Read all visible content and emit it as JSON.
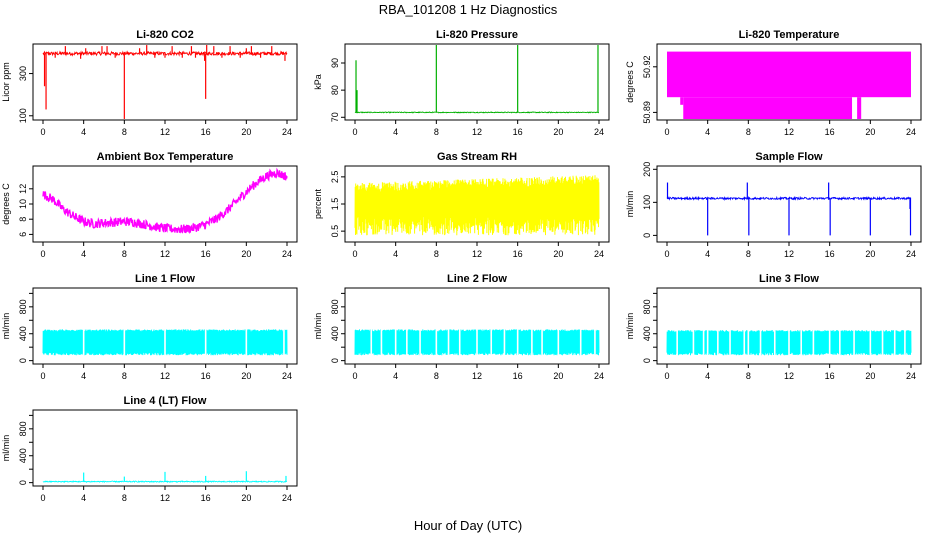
{
  "title": "RBA_101208  1 Hz Diagnostics",
  "x_axis_title": "Hour of Day (UTC)",
  "chart_data": [
    {
      "id": "co2",
      "type": "line",
      "title": "Li-820 CO2",
      "ylabel": "Licor ppm",
      "color": "#ff0000",
      "xlim": [
        0,
        24
      ],
      "xticks": [
        0,
        4,
        8,
        12,
        16,
        20,
        24
      ],
      "ylim": [
        80,
        440
      ],
      "yticks": [
        100,
        300
      ],
      "series": [
        {
          "pattern": "noisy",
          "base": 395,
          "noise": 8,
          "spikes": [
            [
              0.15,
              240
            ],
            [
              0.3,
              130
            ],
            [
              1.2,
              375
            ],
            [
              2.2,
              430
            ],
            [
              3.7,
              370
            ],
            [
              4.2,
              420
            ],
            [
              5.8,
              430
            ],
            [
              6.3,
              430
            ],
            [
              7.1,
              375
            ],
            [
              8,
              80
            ],
            [
              9.5,
              420
            ],
            [
              10.2,
              435
            ],
            [
              11.0,
              375
            ],
            [
              12.0,
              375
            ],
            [
              12.7,
              430
            ],
            [
              13.7,
              375
            ],
            [
              14.6,
              430
            ],
            [
              15.0,
              375
            ],
            [
              15.9,
              360
            ],
            [
              16,
              180
            ],
            [
              16.1,
              455
            ],
            [
              16.8,
              430
            ],
            [
              17.6,
              375
            ],
            [
              18.4,
              430
            ],
            [
              19.4,
              375
            ],
            [
              20.0,
              420
            ],
            [
              20.5,
              430
            ],
            [
              21.4,
              375
            ],
            [
              22.5,
              430
            ],
            [
              23.8,
              360
            ]
          ]
        }
      ]
    },
    {
      "id": "pressure",
      "type": "line",
      "title": "Li-820 Pressure",
      "ylabel": "kPa",
      "color": "#00b000",
      "xlim": [
        0,
        24
      ],
      "xticks": [
        0,
        4,
        8,
        12,
        16,
        20,
        24
      ],
      "ylim": [
        69,
        97
      ],
      "yticks": [
        70,
        80,
        90
      ],
      "series": [
        {
          "pattern": "noisy",
          "base": 71.8,
          "noise": 0.15,
          "spikes": [
            [
              0.1,
              91
            ],
            [
              0.2,
              80
            ],
            [
              8,
              97
            ],
            [
              16,
              97
            ],
            [
              23.9,
              97
            ]
          ]
        }
      ]
    },
    {
      "id": "li820_temp",
      "type": "area",
      "title": "Li-820 Temperature",
      "ylabel": "degrees C",
      "color": "#ff00ff",
      "xlim": [
        0,
        24
      ],
      "xticks": [
        0,
        4,
        8,
        12,
        16,
        20,
        24
      ],
      "ylim": [
        50.885,
        50.935
      ],
      "yticks": [
        50.89,
        50.92
      ],
      "series": [
        {
          "pattern": "band",
          "low": 50.9,
          "high": 50.93,
          "deep_from": 1.6,
          "deep_to": 18.2,
          "deep_low": 50.885,
          "gap": [
            18.3,
            18.6
          ],
          "deep2_from": 18.7,
          "deep2_to": 19.1,
          "edge_low": [
            [
              0,
              1.3,
              50.91
            ],
            [
              1.3,
              1.6,
              50.895
            ]
          ]
        }
      ]
    },
    {
      "id": "ambient_temp",
      "type": "line",
      "title": "Ambient Box Temperature",
      "ylabel": "degrees C",
      "color": "#ff00ff",
      "xlim": [
        0,
        24
      ],
      "xticks": [
        0,
        4,
        8,
        12,
        16,
        20,
        24
      ],
      "ylim": [
        5,
        15
      ],
      "yticks": [
        6,
        8,
        10,
        12
      ],
      "series": [
        {
          "pattern": "curve",
          "noise": 0.6,
          "points": [
            [
              0,
              11.3
            ],
            [
              1,
              10.6
            ],
            [
              2,
              9.3
            ],
            [
              3,
              8.4
            ],
            [
              4,
              7.7
            ],
            [
              5,
              7.4
            ],
            [
              6,
              7.5
            ],
            [
              7,
              7.6
            ],
            [
              8,
              7.7
            ],
            [
              9,
              7.6
            ],
            [
              10,
              7.3
            ],
            [
              11,
              7.0
            ],
            [
              12,
              6.8
            ],
            [
              13,
              6.7
            ],
            [
              14,
              6.7
            ],
            [
              15,
              6.9
            ],
            [
              16,
              7.3
            ],
            [
              17,
              8.0
            ],
            [
              18,
              9.0
            ],
            [
              19,
              10.3
            ],
            [
              20,
              11.6
            ],
            [
              21,
              12.8
            ],
            [
              22,
              13.7
            ],
            [
              23,
              14.1
            ],
            [
              24,
              13.6
            ]
          ]
        }
      ]
    },
    {
      "id": "rh",
      "type": "area",
      "title": "Gas Stream RH",
      "ylabel": "percent",
      "color": "#ffff00",
      "xlim": [
        0,
        24
      ],
      "xticks": [
        0,
        4,
        8,
        12,
        16,
        20,
        24
      ],
      "ylim": [
        0.1,
        2.9
      ],
      "yticks": [
        0.5,
        1.5,
        2.5
      ],
      "series": [
        {
          "pattern": "noise_band",
          "points_low": [
            [
              0,
              0.7
            ],
            [
              24,
              0.7
            ]
          ],
          "points_high": [
            [
              0,
              2.1
            ],
            [
              24,
              2.4
            ]
          ],
          "jitter": 0.35
        }
      ]
    },
    {
      "id": "sample_flow",
      "type": "line",
      "title": "Sample Flow",
      "ylabel": "ml/min",
      "color": "#0000ff",
      "xlim": [
        0,
        24
      ],
      "xticks": [
        0,
        4,
        8,
        12,
        16,
        20,
        24
      ],
      "ylim": [
        -20,
        210
      ],
      "yticks": [
        0,
        100,
        200
      ],
      "series": [
        {
          "pattern": "noisy",
          "base": 112,
          "noise": 3,
          "spikes": [
            [
              0.05,
              160
            ],
            [
              4,
              0
            ],
            [
              7.9,
              160
            ],
            [
              8.05,
              0
            ],
            [
              12,
              0
            ],
            [
              15.9,
              160
            ],
            [
              16.05,
              0
            ],
            [
              20,
              0
            ],
            [
              23.95,
              0
            ],
            [
              23.9,
              80
            ]
          ]
        }
      ]
    },
    {
      "id": "line1",
      "type": "area",
      "title": "Line 1 Flow",
      "ylabel": "ml/min",
      "color": "#00ffff",
      "xlim": [
        0,
        24
      ],
      "xticks": [
        0,
        4,
        8,
        12,
        16,
        20,
        24
      ],
      "ylim": [
        -50,
        1080
      ],
      "yticks": [
        0,
        200,
        400,
        600,
        800,
        1000
      ],
      "yticklabels": [
        0,
        400,
        800
      ],
      "series": [
        {
          "pattern": "band",
          "low": 100,
          "high": 450,
          "gaps": [
            4,
            8,
            12,
            16,
            20,
            23.7
          ]
        }
      ]
    },
    {
      "id": "line2",
      "type": "area",
      "title": "Line 2 Flow",
      "ylabel": "ml/min",
      "color": "#00ffff",
      "xlim": [
        0,
        24
      ],
      "xticks": [
        0,
        4,
        8,
        12,
        16,
        20,
        24
      ],
      "ylim": [
        -50,
        1080
      ],
      "yticks": [
        0,
        200,
        400,
        600,
        800,
        1000
      ],
      "yticklabels": [
        0,
        400,
        800
      ],
      "series": [
        {
          "pattern": "band",
          "low": 100,
          "high": 450,
          "gaps": [
            1.6,
            2.6,
            4.0,
            5.1,
            6.4,
            8,
            9.2,
            10.3,
            12,
            13.4,
            14.7,
            16,
            17.4,
            18.4,
            20,
            22.2,
            23.6
          ]
        }
      ]
    },
    {
      "id": "line3",
      "type": "area",
      "title": "Line 3 Flow",
      "ylabel": "ml/min",
      "color": "#00ffff",
      "xlim": [
        0,
        24
      ],
      "xticks": [
        0,
        4,
        8,
        12,
        16,
        20,
        24
      ],
      "ylim": [
        -50,
        1080
      ],
      "yticks": [
        0,
        200,
        400,
        600,
        800,
        1000
      ],
      "yticklabels": [
        0,
        400,
        800
      ],
      "series": [
        {
          "pattern": "band",
          "low": 100,
          "high": 440,
          "gaps": [
            1.0,
            2.6,
            3.6,
            4.0,
            5.0,
            6.2,
            7.6,
            8,
            9.2,
            10.6,
            12,
            13.2,
            14.4,
            16,
            17.0,
            18.4,
            20,
            21.2,
            22.4,
            23.4
          ]
        }
      ]
    },
    {
      "id": "line4",
      "type": "line",
      "title": "Line 4 (LT) Flow",
      "ylabel": "ml/min",
      "color": "#00ffff",
      "xlim": [
        0,
        24
      ],
      "xticks": [
        0,
        4,
        8,
        12,
        16,
        20,
        24
      ],
      "ylim": [
        -50,
        1080
      ],
      "yticks": [
        0,
        200,
        400,
        600,
        800,
        1000
      ],
      "yticklabels": [
        0,
        400,
        800
      ],
      "series": [
        {
          "pattern": "noisy",
          "base": 15,
          "noise": 8,
          "spikes": [
            [
              4,
              150
            ],
            [
              8,
              90
            ],
            [
              12,
              160
            ],
            [
              16,
              100
            ],
            [
              20,
              170
            ],
            [
              23.9,
              100
            ]
          ]
        }
      ]
    }
  ]
}
